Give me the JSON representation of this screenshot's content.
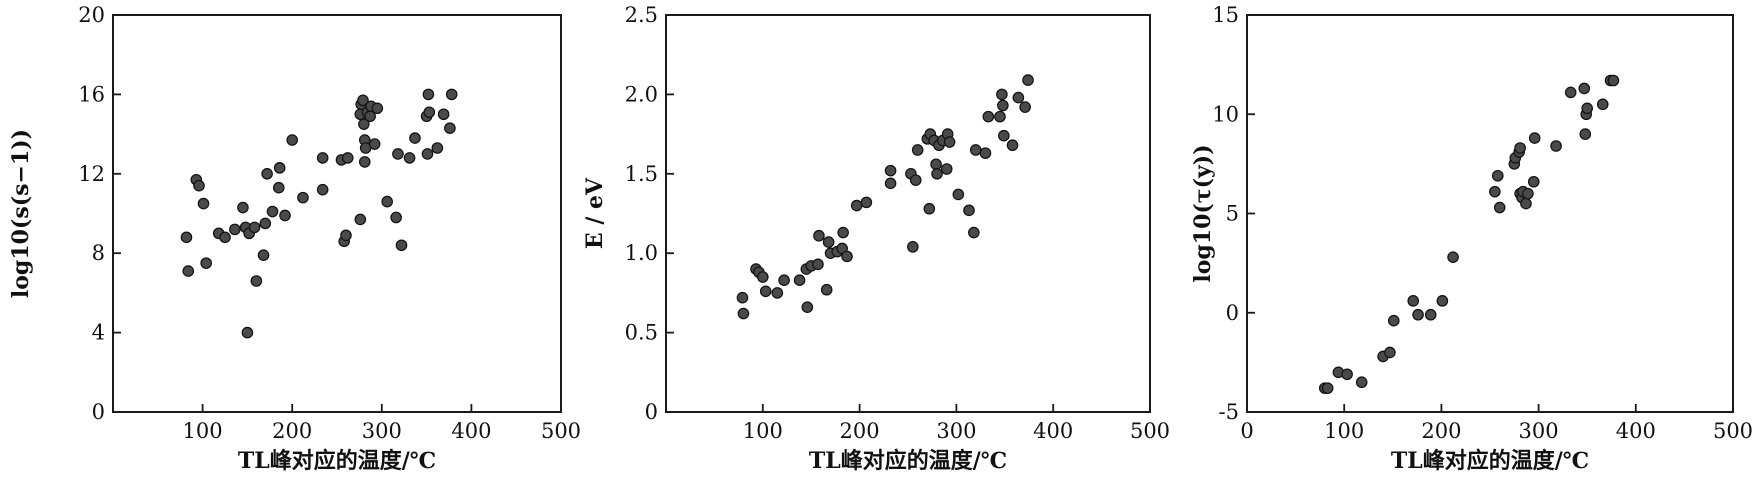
{
  "chart_data": [
    {
      "type": "scatter",
      "title": "",
      "xlabel": "TL峰对应的温度/℃",
      "ylabel": "log10(s(s−1))",
      "xlim": [
        0,
        500
      ],
      "ylim": [
        0,
        20
      ],
      "xticks": [
        100,
        200,
        300,
        400,
        500
      ],
      "yticks": [
        0,
        4,
        8,
        12,
        16,
        20
      ],
      "grid": false,
      "points": [
        [
          82,
          8.8
        ],
        [
          84,
          7.1
        ],
        [
          93,
          11.7
        ],
        [
          96,
          11.4
        ],
        [
          101,
          10.5
        ],
        [
          104,
          7.5
        ],
        [
          118,
          9.0
        ],
        [
          125,
          8.8
        ],
        [
          136,
          9.2
        ],
        [
          145,
          10.3
        ],
        [
          148,
          9.3
        ],
        [
          150,
          4.0
        ],
        [
          152,
          9.0
        ],
        [
          158,
          9.3
        ],
        [
          160,
          6.6
        ],
        [
          168,
          7.9
        ],
        [
          170,
          9.5
        ],
        [
          172,
          12.0
        ],
        [
          178,
          10.1
        ],
        [
          185,
          11.3
        ],
        [
          186,
          12.3
        ],
        [
          192,
          9.9
        ],
        [
          200,
          13.7
        ],
        [
          212,
          10.8
        ],
        [
          234,
          12.8
        ],
        [
          234,
          11.2
        ],
        [
          255,
          12.7
        ],
        [
          258,
          8.6
        ],
        [
          260,
          8.9
        ],
        [
          262,
          12.8
        ],
        [
          276,
          9.7
        ],
        [
          276,
          15.0
        ],
        [
          277,
          15.5
        ],
        [
          279,
          15.7
        ],
        [
          280,
          14.5
        ],
        [
          281,
          13.7
        ],
        [
          281,
          12.6
        ],
        [
          282,
          13.3
        ],
        [
          284,
          15.1
        ],
        [
          287,
          14.9
        ],
        [
          288,
          15.4
        ],
        [
          292,
          13.5
        ],
        [
          295,
          15.3
        ],
        [
          306,
          10.6
        ],
        [
          316,
          9.8
        ],
        [
          318,
          13.0
        ],
        [
          322,
          8.4
        ],
        [
          331,
          12.8
        ],
        [
          337,
          13.8
        ],
        [
          350,
          14.9
        ],
        [
          351,
          13.0
        ],
        [
          352,
          16.0
        ],
        [
          353,
          15.1
        ],
        [
          362,
          13.3
        ],
        [
          369,
          15.0
        ],
        [
          376,
          14.3
        ],
        [
          378,
          16.0
        ]
      ]
    },
    {
      "type": "scatter",
      "title": "",
      "xlabel": "TL峰对应的温度/℃",
      "ylabel": "E / eV",
      "xlim": [
        0,
        500
      ],
      "ylim": [
        0,
        2.5
      ],
      "xticks": [
        100,
        200,
        300,
        400,
        500
      ],
      "yticks": [
        0,
        0.5,
        1.0,
        1.5,
        2.0,
        2.5
      ],
      "ytick_labels": [
        "0",
        "0.5",
        "1.0",
        "1.5",
        "2.0",
        "2.5"
      ],
      "grid": false,
      "points": [
        [
          79,
          0.72
        ],
        [
          80,
          0.62
        ],
        [
          93,
          0.9
        ],
        [
          96,
          0.88
        ],
        [
          100,
          0.85
        ],
        [
          103,
          0.76
        ],
        [
          115,
          0.75
        ],
        [
          122,
          0.83
        ],
        [
          138,
          0.83
        ],
        [
          145,
          0.9
        ],
        [
          146,
          0.66
        ],
        [
          150,
          0.92
        ],
        [
          157,
          0.93
        ],
        [
          158,
          1.11
        ],
        [
          166,
          0.77
        ],
        [
          168,
          1.07
        ],
        [
          170,
          1.0
        ],
        [
          177,
          1.01
        ],
        [
          182,
          1.03
        ],
        [
          183,
          1.13
        ],
        [
          187,
          0.98
        ],
        [
          197,
          1.3
        ],
        [
          207,
          1.32
        ],
        [
          232,
          1.52
        ],
        [
          232,
          1.44
        ],
        [
          253,
          1.5
        ],
        [
          255,
          1.04
        ],
        [
          258,
          1.46
        ],
        [
          260,
          1.65
        ],
        [
          270,
          1.72
        ],
        [
          272,
          1.28
        ],
        [
          273,
          1.75
        ],
        [
          277,
          1.71
        ],
        [
          279,
          1.56
        ],
        [
          280,
          1.5
        ],
        [
          282,
          1.68
        ],
        [
          286,
          1.71
        ],
        [
          290,
          1.53
        ],
        [
          291,
          1.75
        ],
        [
          293,
          1.7
        ],
        [
          302,
          1.37
        ],
        [
          313,
          1.27
        ],
        [
          318,
          1.13
        ],
        [
          320,
          1.65
        ],
        [
          330,
          1.63
        ],
        [
          333,
          1.86
        ],
        [
          345,
          1.86
        ],
        [
          347,
          2.0
        ],
        [
          348,
          1.93
        ],
        [
          349,
          1.74
        ],
        [
          358,
          1.68
        ],
        [
          364,
          1.98
        ],
        [
          371,
          1.92
        ],
        [
          374,
          2.09
        ]
      ]
    },
    {
      "type": "scatter",
      "title": "",
      "xlabel": "TL峰对应的温度/℃",
      "ylabel": "log10(τ(y))",
      "xlim": [
        0,
        500
      ],
      "ylim": [
        -5,
        15
      ],
      "xticks": [
        0,
        100,
        200,
        300,
        400,
        500
      ],
      "yticks": [
        -5,
        0,
        5,
        10,
        15
      ],
      "grid": false,
      "points": [
        [
          80,
          -3.8
        ],
        [
          83,
          -3.8
        ],
        [
          94,
          -3.0
        ],
        [
          103,
          -3.1
        ],
        [
          118,
          -3.5
        ],
        [
          140,
          -2.2
        ],
        [
          147,
          -2.0
        ],
        [
          151,
          -0.4
        ],
        [
          171,
          0.6
        ],
        [
          176,
          -0.1
        ],
        [
          189,
          -0.1
        ],
        [
          201,
          0.6
        ],
        [
          212,
          2.8
        ],
        [
          255,
          6.1
        ],
        [
          258,
          6.9
        ],
        [
          260,
          5.3
        ],
        [
          275,
          7.5
        ],
        [
          276,
          7.8
        ],
        [
          280,
          8.1
        ],
        [
          281,
          8.3
        ],
        [
          281,
          6.0
        ],
        [
          283,
          5.8
        ],
        [
          284,
          6.1
        ],
        [
          287,
          5.5
        ],
        [
          289,
          6.0
        ],
        [
          295,
          6.6
        ],
        [
          296,
          8.8
        ],
        [
          318,
          8.4
        ],
        [
          333,
          11.1
        ],
        [
          347,
          11.3
        ],
        [
          348,
          9.0
        ],
        [
          349,
          10.0
        ],
        [
          350,
          10.3
        ],
        [
          366,
          10.5
        ],
        [
          374,
          11.7
        ],
        [
          377,
          11.7
        ]
      ]
    }
  ]
}
